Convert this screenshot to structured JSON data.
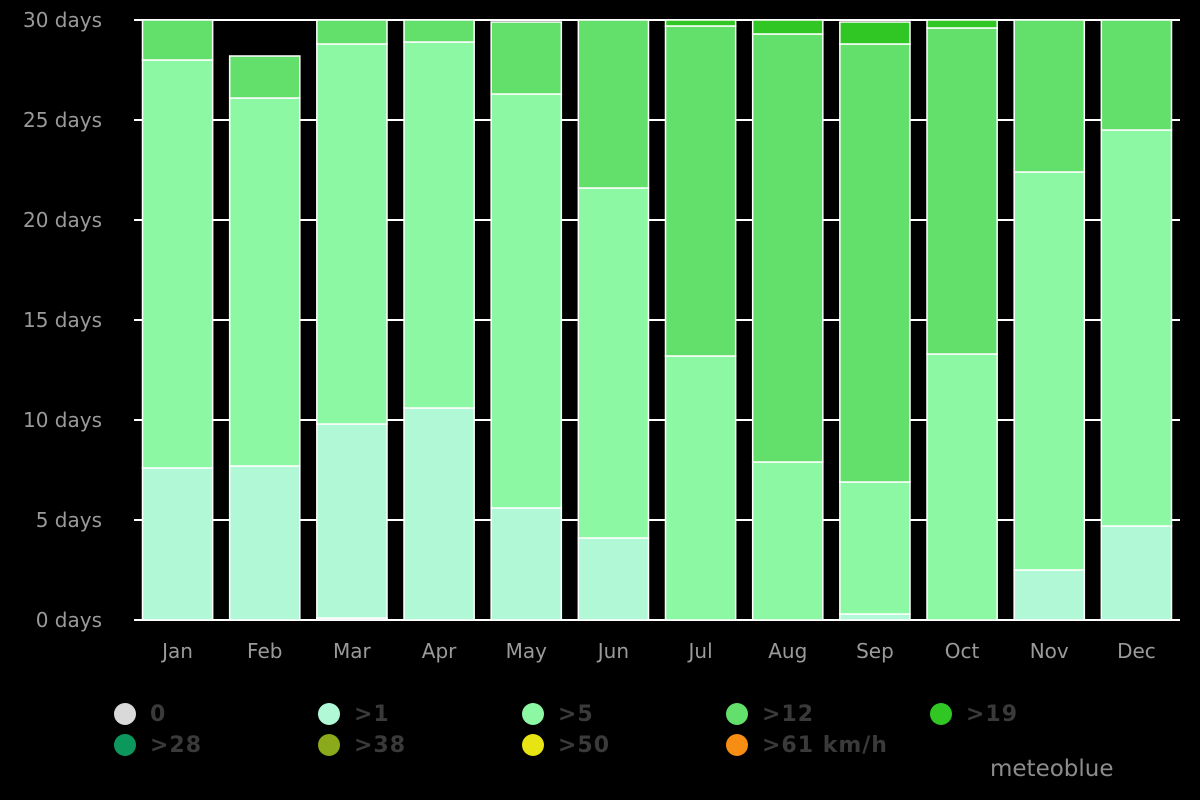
{
  "brand": "meteoblue",
  "chart_data": {
    "type": "bar",
    "stacked": true,
    "categories": [
      "Jan",
      "Feb",
      "Mar",
      "Apr",
      "May",
      "Jun",
      "Jul",
      "Aug",
      "Sep",
      "Oct",
      "Nov",
      "Dec"
    ],
    "ylim": [
      0,
      30
    ],
    "yticks": [
      0,
      5,
      10,
      15,
      20,
      25,
      30
    ],
    "ytick_labels": [
      "0 days",
      "5 days",
      "10 days",
      "15 days",
      "20 days",
      "25 days",
      "30 days"
    ],
    "grid": true,
    "series": [
      {
        "name": "0",
        "color": "#d9d9d9",
        "values": [
          0,
          0,
          0.1,
          0,
          0,
          0,
          0,
          0,
          0,
          0,
          0,
          0
        ]
      },
      {
        "name": ">1",
        "color": "#b1f8d6",
        "values": [
          7.6,
          7.7,
          9.7,
          10.6,
          5.6,
          4.1,
          0,
          0,
          0.3,
          0,
          2.5,
          4.7
        ]
      },
      {
        "name": ">5",
        "color": "#8cf8a3",
        "values": [
          20.4,
          18.4,
          19.0,
          18.3,
          20.7,
          17.5,
          13.2,
          7.9,
          6.6,
          13.3,
          19.9,
          19.8
        ]
      },
      {
        "name": ">12",
        "color": "#63df6c",
        "values": [
          2.8,
          2.1,
          1.2,
          1.1,
          3.6,
          8.4,
          16.5,
          21.4,
          21.9,
          16.3,
          7.6,
          5.5
        ]
      },
      {
        "name": ">19",
        "color": "#30c724",
        "values": [
          0.2,
          0,
          0,
          0,
          0,
          0,
          0.3,
          0.7,
          1.1,
          0.4,
          0,
          0
        ]
      },
      {
        "name": ">28",
        "color": "#0c985c",
        "values": [
          0,
          0,
          0,
          0,
          0,
          0,
          0,
          0,
          0,
          0,
          0,
          0
        ]
      },
      {
        "name": ">38",
        "color": "#8aa91b",
        "values": [
          0,
          0,
          0,
          0,
          0,
          0,
          0,
          0,
          0,
          0,
          0,
          0
        ]
      },
      {
        "name": ">50",
        "color": "#e8e414",
        "values": [
          0,
          0,
          0,
          0,
          0,
          0,
          0,
          0,
          0,
          0,
          0,
          0
        ]
      },
      {
        "name": ">61 km/h",
        "color": "#f88d13",
        "values": [
          0,
          0,
          0,
          0,
          0,
          0,
          0,
          0,
          0,
          0,
          0,
          0
        ]
      }
    ],
    "legend": "bottom"
  }
}
